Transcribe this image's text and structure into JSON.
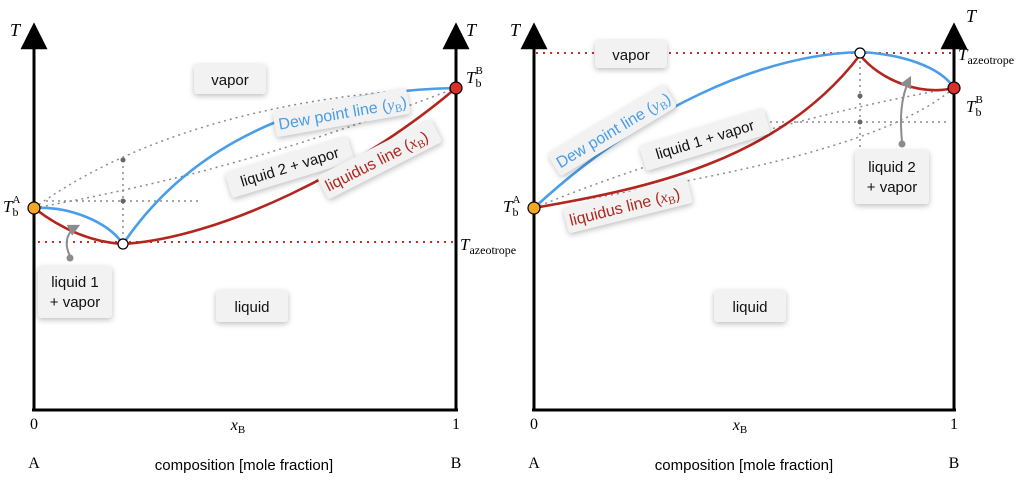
{
  "colors": {
    "dew": "#4a9de8",
    "liquidus": "#b3261e",
    "azeotrope_line": "#d32a2a",
    "tie": "#8c8c8c",
    "axis": "#000000",
    "point_A": "#f5a623",
    "point_B": "#d9302a"
  },
  "left": {
    "axis_T_left": "T",
    "axis_T_right": "T",
    "tick_0": "0",
    "tick_1": "1",
    "xlabel_sym": "x",
    "xlabel_sub": "B",
    "comp_A": "A",
    "comp_B": "B",
    "composition_label": "composition [mole fraction]",
    "vapor": "vapor",
    "liquid": "liquid",
    "liquid2_vapor": "liquid 2 + vapor",
    "liquid1_line1": "liquid 1",
    "liquid1_line2": "+ vapor",
    "dew_text": "Dew point line (",
    "dew_sym": "y",
    "dew_sub": "B",
    "liq_text": "liquidus line (",
    "liq_sym": "x",
    "liq_sub": "B",
    "close_paren": ")",
    "TbA_T": "T",
    "TbA_sub": "b",
    "TbA_sup": "A",
    "TbB_T": "T",
    "TbB_sub": "b",
    "TbB_sup": "B",
    "Taz_T": "T",
    "Taz_sub": "azeotrope"
  },
  "right": {
    "axis_T_left": "T",
    "axis_T_right": "T",
    "tick_0": "0",
    "tick_1": "1",
    "xlabel_sym": "x",
    "xlabel_sub": "B",
    "comp_A": "A",
    "comp_B": "B",
    "composition_label": "composition [mole fraction]",
    "vapor": "vapor",
    "liquid": "liquid",
    "liquid1_vapor": "liquid 1 + vapor",
    "liquid2_line1": "liquid 2",
    "liquid2_line2": "+ vapor",
    "dew_text": "Dew point line (",
    "dew_sym": "y",
    "dew_sub": "B",
    "liq_text": "liquidus line (",
    "liq_sym": "x",
    "liq_sub": "B",
    "close_paren": ")",
    "TbA_T": "T",
    "TbA_sub": "b",
    "TbA_sup": "A",
    "TbB_T": "T",
    "TbB_sub": "b",
    "TbB_sup": "B",
    "Taz_T": "T",
    "Taz_sub": "azeotrope"
  }
}
